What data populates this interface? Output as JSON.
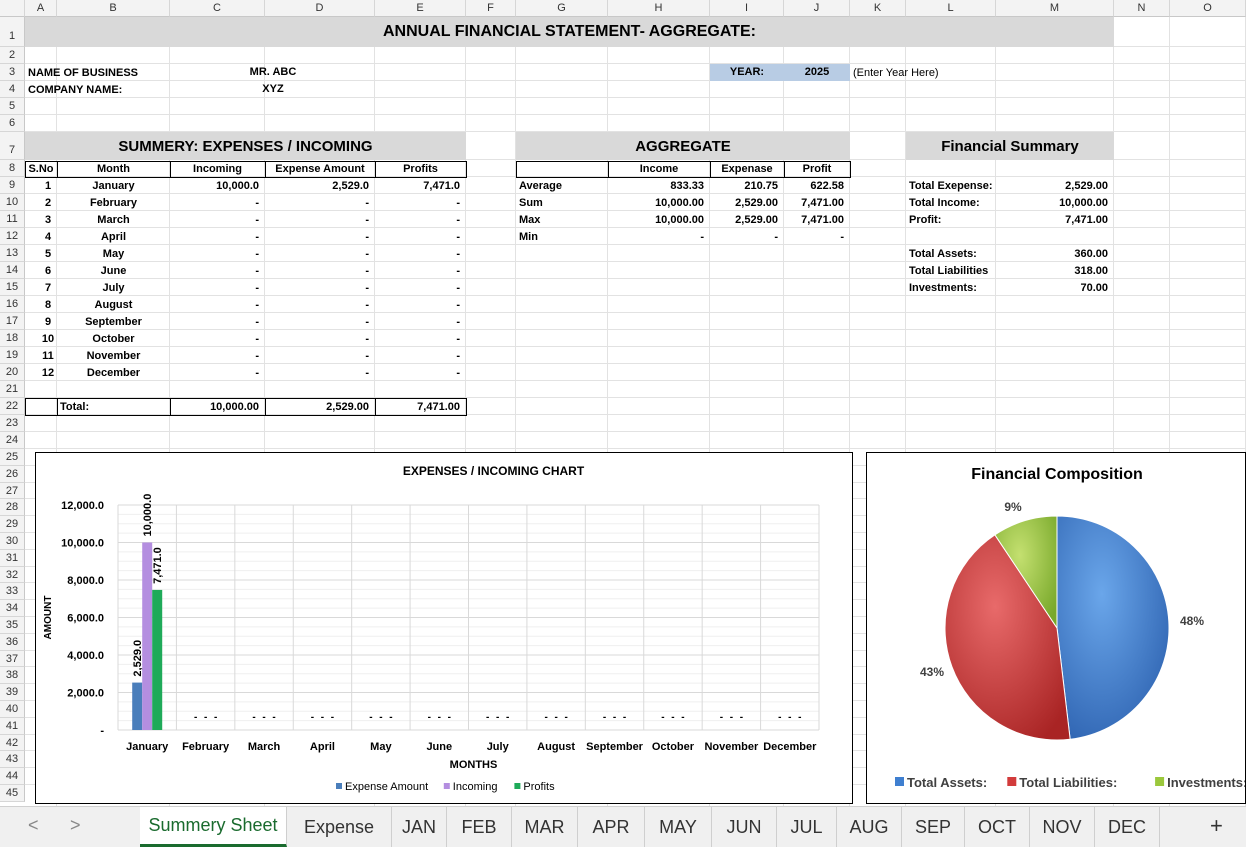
{
  "columns": [
    "A",
    "B",
    "C",
    "D",
    "E",
    "F",
    "G",
    "H",
    "I",
    "J",
    "K",
    "L",
    "M",
    "N",
    "O"
  ],
  "title": "ANNUAL FINANCIAL STATEMENT- AGGREGATE:",
  "business": {
    "name_label": "NAME OF BUSINESS",
    "name_value": "MR. ABC",
    "company_label": "COMPANY NAME:",
    "company_value": "XYZ",
    "year_label": "YEAR:",
    "year_value": "2025",
    "year_hint": "(Enter Year Here)"
  },
  "summary_table": {
    "title": "SUMMERY: EXPENSES / INCOMING",
    "headers": [
      "S.No",
      "Month",
      "Incoming",
      "Expense Amount",
      "Profits"
    ],
    "rows": [
      [
        "1",
        "January",
        "10,000.0",
        "2,529.0",
        "7,471.0"
      ],
      [
        "2",
        "February",
        "-",
        "-",
        "-"
      ],
      [
        "3",
        "March",
        "-",
        "-",
        "-"
      ],
      [
        "4",
        "April",
        "-",
        "-",
        "-"
      ],
      [
        "5",
        "May",
        "-",
        "-",
        "-"
      ],
      [
        "6",
        "June",
        "-",
        "-",
        "-"
      ],
      [
        "7",
        "July",
        "-",
        "-",
        "-"
      ],
      [
        "8",
        "August",
        "-",
        "-",
        "-"
      ],
      [
        "9",
        "September",
        "-",
        "-",
        "-"
      ],
      [
        "10",
        "October",
        "-",
        "-",
        "-"
      ],
      [
        "11",
        "November",
        "-",
        "-",
        "-"
      ],
      [
        "12",
        "December",
        "-",
        "-",
        "-"
      ]
    ],
    "total_label": "Total:",
    "total_incoming": "10,000.00",
    "total_expense": "2,529.00",
    "total_profits": "7,471.00"
  },
  "aggregate": {
    "title": "AGGREGATE",
    "headers": [
      "",
      "Income",
      "Expenase",
      "Profit"
    ],
    "rows": [
      [
        "Average",
        "833.33",
        "210.75",
        "622.58"
      ],
      [
        "Sum",
        "10,000.00",
        "2,529.00",
        "7,471.00"
      ],
      [
        "Max",
        "10,000.00",
        "2,529.00",
        "7,471.00"
      ],
      [
        "Min",
        "-",
        "-",
        "-"
      ]
    ]
  },
  "financial_summary": {
    "title": "Financial Summary",
    "rows": [
      [
        "Total Exepense:",
        "2,529.00"
      ],
      [
        "Total Income:",
        "10,000.00"
      ],
      [
        "Profit:",
        "7,471.00"
      ],
      [
        "",
        ""
      ],
      [
        "Total Assets:",
        "360.00"
      ],
      [
        "Total Liabilities",
        "318.00"
      ],
      [
        "Investments:",
        "70.00"
      ]
    ]
  },
  "colors": {
    "expense": "#4a7ebb",
    "incoming": "#b48ee0",
    "profits": "#1faa59",
    "pie_assets": "#3f7fd0",
    "pie_liabilities": "#d23b3b",
    "pie_investments": "#9bc83c",
    "band": "#d9d9d9",
    "year_fill": "#b8cce4",
    "active_tab": "#1a6b2e"
  },
  "chart_data": [
    {
      "type": "bar",
      "title": "EXPENSES / INCOMING CHART",
      "xlabel": "MONTHS",
      "ylabel": "AMOUNT",
      "categories": [
        "January",
        "February",
        "March",
        "April",
        "May",
        "June",
        "July",
        "August",
        "September",
        "October",
        "November",
        "December"
      ],
      "series": [
        {
          "name": "Expense Amount",
          "values": [
            2529,
            0,
            0,
            0,
            0,
            0,
            0,
            0,
            0,
            0,
            0,
            0
          ]
        },
        {
          "name": "Incoming",
          "values": [
            10000,
            0,
            0,
            0,
            0,
            0,
            0,
            0,
            0,
            0,
            0,
            0
          ]
        },
        {
          "name": "Profits",
          "values": [
            7471,
            0,
            0,
            0,
            0,
            0,
            0,
            0,
            0,
            0,
            0,
            0
          ]
        }
      ],
      "data_labels": [
        [
          "2,529.0",
          "-",
          "-",
          "-",
          "-",
          "-",
          "-",
          "-",
          "-",
          "-",
          "-",
          "-"
        ],
        [
          "10,000.0",
          "-",
          "-",
          "-",
          "-",
          "-",
          "-",
          "-",
          "-",
          "-",
          "-",
          "-"
        ],
        [
          "7,471.0",
          "-",
          "-",
          "-",
          "-",
          "-",
          "-",
          "-",
          "-",
          "-",
          "-",
          "-"
        ]
      ],
      "ylim": [
        0,
        12000
      ],
      "yticks": [
        "-",
        "2,000.0",
        "4,000.0",
        "6,000.0",
        "8,000.0",
        "10,000.0",
        "12,000.0"
      ],
      "grid": true,
      "legend": "bottom"
    },
    {
      "type": "pie",
      "title": "Financial Composition",
      "labels": [
        "Total Assets:",
        "Total Liabilities:",
        "Investments:"
      ],
      "values": [
        360,
        318,
        70
      ],
      "percent_labels": [
        "48%",
        "43%",
        "9%"
      ],
      "legend": "bottom"
    }
  ],
  "tabs": {
    "nav_prev": "<",
    "nav_next": ">",
    "items": [
      "Summery Sheet",
      "Expense",
      "JAN",
      "FEB",
      "MAR",
      "APR",
      "MAY",
      "JUN",
      "JUL",
      "AUG",
      "SEP",
      "OCT",
      "NOV",
      "DEC"
    ],
    "active": "Summery Sheet",
    "add": "+"
  }
}
